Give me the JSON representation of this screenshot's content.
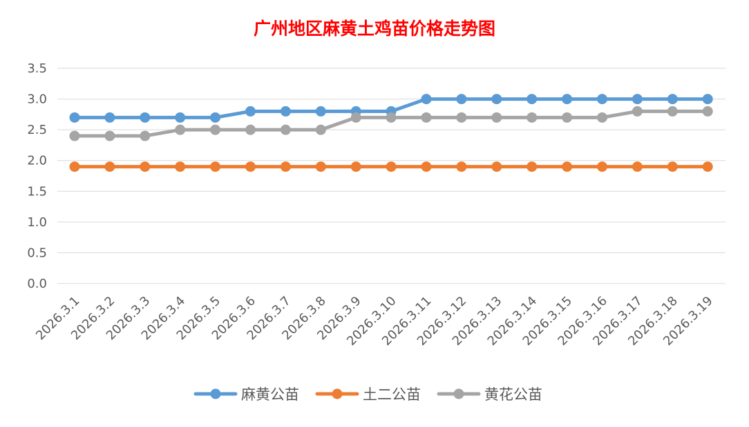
{
  "chart_data": {
    "type": "line",
    "title": "广州地区麻黄土鸡苗价格走势图",
    "xlabel": "",
    "ylabel": "",
    "ylim": [
      0,
      3.5
    ],
    "yticks": [
      "0.0",
      "0.5",
      "1.0",
      "1.5",
      "2.0",
      "2.5",
      "3.0",
      "3.5"
    ],
    "grid": true,
    "legend_position": "bottom",
    "categories": [
      "2026.3.1",
      "2026.3.2",
      "2026.3.3",
      "2026.3.4",
      "2026.3.5",
      "2026.3.6",
      "2026.3.7",
      "2026.3.8",
      "2026.3.9",
      "2026.3.10",
      "2026.3.11",
      "2026.3.12",
      "2026.3.13",
      "2026.3.14",
      "2026.3.15",
      "2026.3.16",
      "2026.3.17",
      "2026.3.18",
      "2026.3.19"
    ],
    "series": [
      {
        "name": "麻黄公苗",
        "color": "#5b9bd5",
        "values": [
          2.7,
          2.7,
          2.7,
          2.7,
          2.7,
          2.8,
          2.8,
          2.8,
          2.8,
          2.8,
          3.0,
          3.0,
          3.0,
          3.0,
          3.0,
          3.0,
          3.0,
          3.0,
          3.0
        ]
      },
      {
        "name": "土二公苗",
        "color": "#ed7d31",
        "values": [
          1.9,
          1.9,
          1.9,
          1.9,
          1.9,
          1.9,
          1.9,
          1.9,
          1.9,
          1.9,
          1.9,
          1.9,
          1.9,
          1.9,
          1.9,
          1.9,
          1.9,
          1.9,
          1.9
        ]
      },
      {
        "name": "黄花公苗",
        "color": "#a5a5a5",
        "values": [
          2.4,
          2.4,
          2.4,
          2.5,
          2.5,
          2.5,
          2.5,
          2.5,
          2.7,
          2.7,
          2.7,
          2.7,
          2.7,
          2.7,
          2.7,
          2.7,
          2.8,
          2.8,
          2.8
        ]
      }
    ]
  }
}
